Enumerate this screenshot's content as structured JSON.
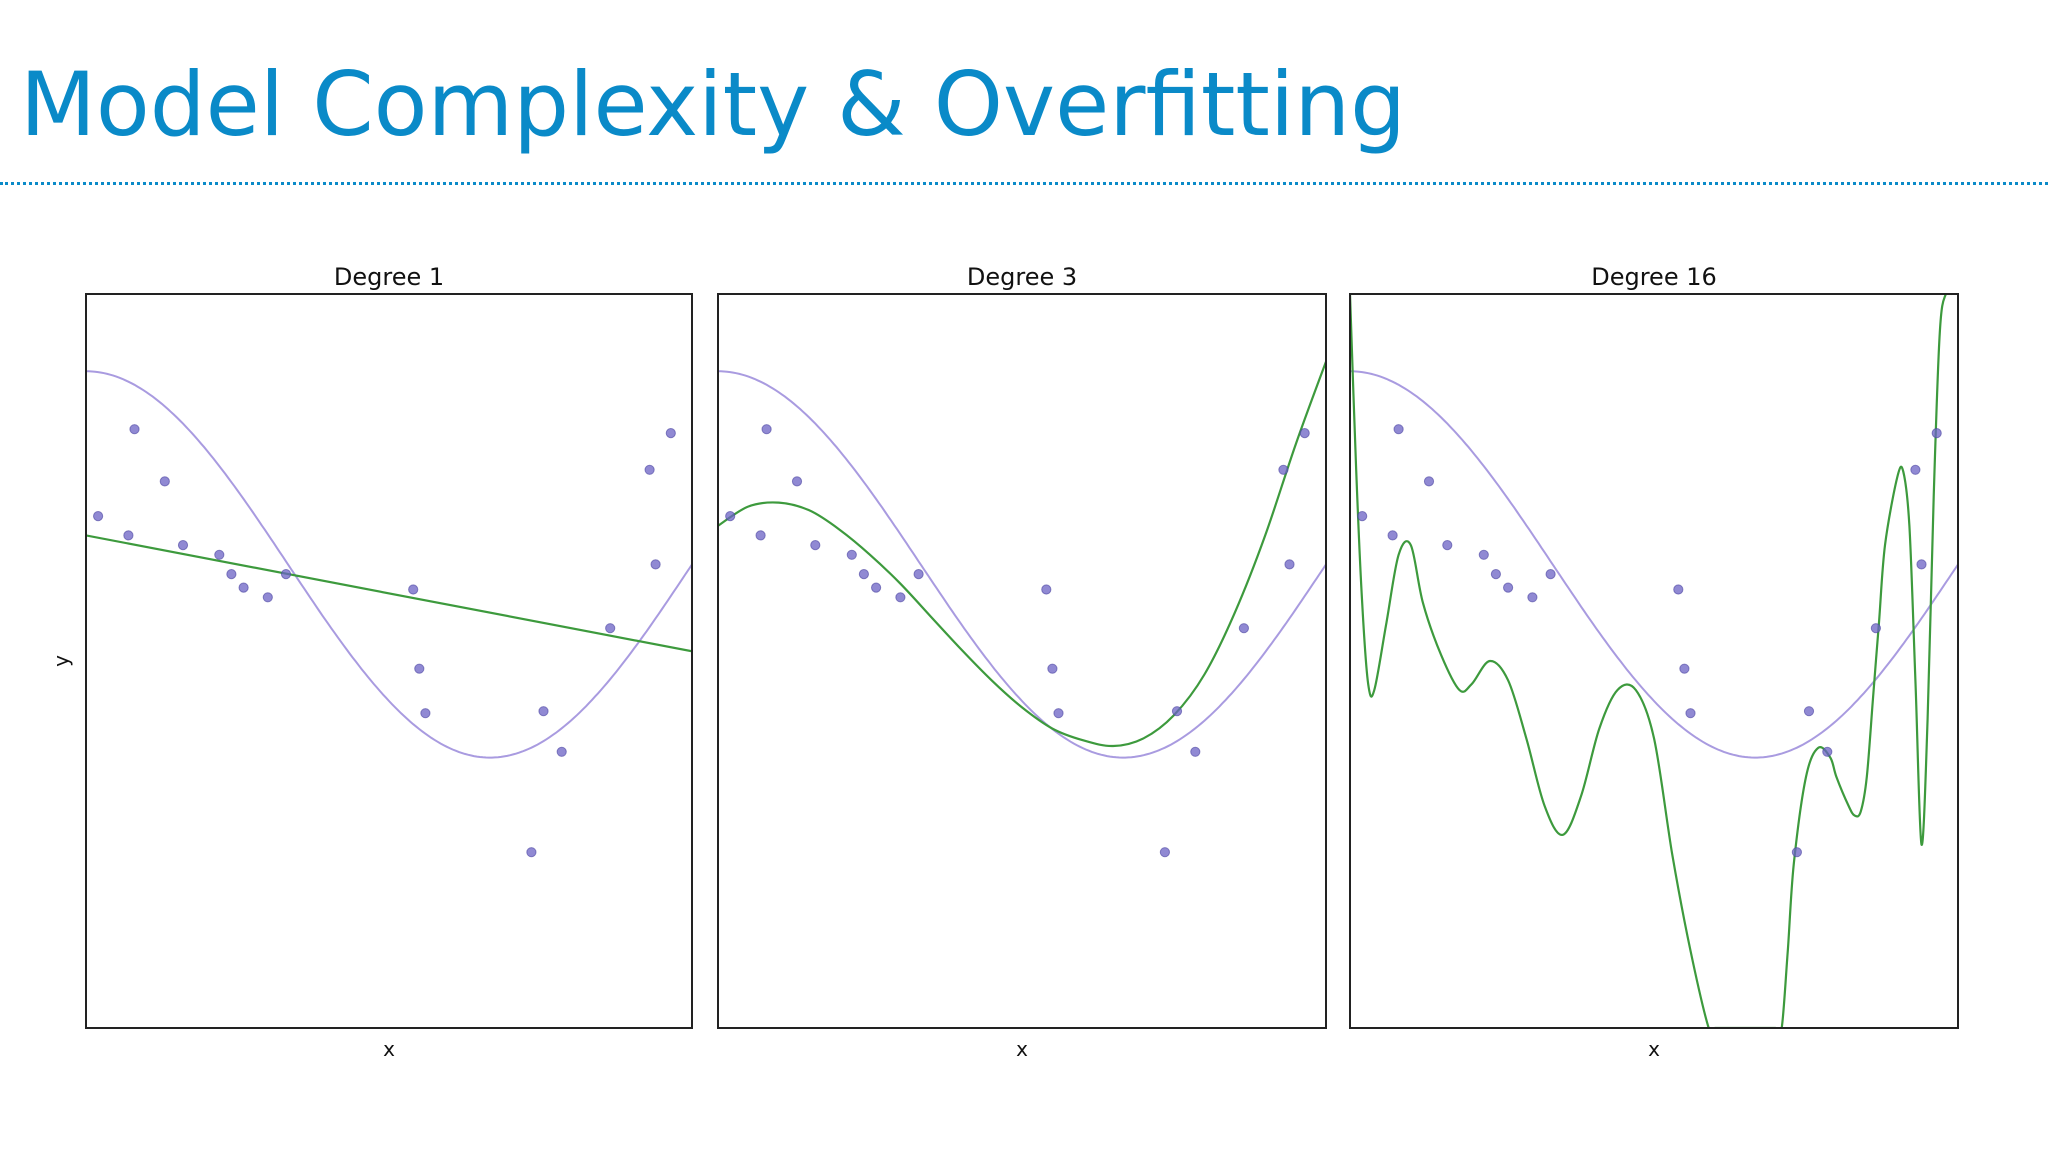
{
  "slide": {
    "title": "Model Complexity & Overfitting"
  },
  "colors": {
    "title": "#0a8ac8",
    "rule": "#0a8ac8",
    "true_curve": "#a99be0",
    "fit_curve": "#3d9a3d",
    "points": "#6b62c4"
  },
  "chart_data": [
    {
      "type": "scatter",
      "title": "Degree 1",
      "xlabel": "x",
      "ylabel": "y",
      "xlim": [
        0,
        1
      ],
      "ylim": [
        -2.4,
        1.4
      ],
      "grid": false,
      "ticks": false,
      "points": {
        "x": [
          0.02,
          0.07,
          0.08,
          0.13,
          0.16,
          0.22,
          0.24,
          0.26,
          0.3,
          0.33,
          0.54,
          0.55,
          0.56,
          0.735,
          0.755,
          0.785,
          0.865,
          0.93,
          0.94,
          0.965
        ],
        "y": [
          0.25,
          0.15,
          0.7,
          0.43,
          0.1,
          0.05,
          -0.05,
          -0.12,
          -0.17,
          -0.05,
          -0.13,
          -0.54,
          -0.77,
          -1.49,
          -0.76,
          -0.97,
          -0.33,
          0.49,
          0.0,
          0.68
        ]
      },
      "true_function": "cos(1.5*pi*x)",
      "fit": {
        "degree": 1,
        "x": [
          0.0,
          1.0
        ],
        "y": [
          0.15,
          -0.45
        ]
      }
    },
    {
      "type": "scatter",
      "title": "Degree 3",
      "xlabel": "x",
      "ylabel": "",
      "xlim": [
        0,
        1
      ],
      "ylim": [
        -2.4,
        1.4
      ],
      "grid": false,
      "ticks": false,
      "points": {
        "x": [
          0.02,
          0.07,
          0.08,
          0.13,
          0.16,
          0.22,
          0.24,
          0.26,
          0.3,
          0.33,
          0.54,
          0.55,
          0.56,
          0.735,
          0.755,
          0.785,
          0.865,
          0.93,
          0.94,
          0.965
        ],
        "y": [
          0.25,
          0.15,
          0.7,
          0.43,
          0.1,
          0.05,
          -0.05,
          -0.12,
          -0.17,
          -0.05,
          -0.13,
          -0.54,
          -0.77,
          -1.49,
          -0.76,
          -0.97,
          -0.33,
          0.49,
          0.0,
          0.68
        ]
      },
      "true_function": "cos(1.5*pi*x)",
      "fit": {
        "degree": 3,
        "x": [
          0.0,
          0.05,
          0.1,
          0.15,
          0.2,
          0.25,
          0.3,
          0.35,
          0.4,
          0.45,
          0.5,
          0.55,
          0.6,
          0.65,
          0.7,
          0.75,
          0.8,
          0.85,
          0.9,
          0.95,
          1.0
        ],
        "y": [
          0.2,
          0.3,
          0.32,
          0.28,
          0.18,
          0.05,
          -0.1,
          -0.27,
          -0.44,
          -0.6,
          -0.74,
          -0.85,
          -0.91,
          -0.94,
          -0.9,
          -0.78,
          -0.57,
          -0.25,
          0.15,
          0.62,
          1.05
        ]
      }
    },
    {
      "type": "scatter",
      "title": "Degree 16",
      "xlabel": "x",
      "ylabel": "",
      "xlim": [
        0,
        1
      ],
      "ylim": [
        -2.4,
        1.4
      ],
      "grid": false,
      "ticks": false,
      "points": {
        "x": [
          0.02,
          0.07,
          0.08,
          0.13,
          0.16,
          0.22,
          0.24,
          0.26,
          0.3,
          0.33,
          0.54,
          0.55,
          0.56,
          0.735,
          0.755,
          0.785,
          0.865,
          0.93,
          0.94,
          0.965
        ],
        "y": [
          0.25,
          0.15,
          0.7,
          0.43,
          0.1,
          0.05,
          -0.05,
          -0.12,
          -0.17,
          -0.05,
          -0.13,
          -0.54,
          -0.77,
          -1.49,
          -0.76,
          -0.97,
          -0.33,
          0.49,
          0.0,
          0.68
        ]
      },
      "true_function": "cos(1.5*pi*x)",
      "fit": {
        "degree": 16,
        "x": [
          0.0,
          0.01,
          0.02,
          0.03,
          0.04,
          0.06,
          0.08,
          0.1,
          0.12,
          0.15,
          0.18,
          0.2,
          0.23,
          0.26,
          0.29,
          0.32,
          0.35,
          0.38,
          0.41,
          0.44,
          0.47,
          0.5,
          0.53,
          0.56,
          0.59,
          0.6,
          0.61,
          0.62,
          0.65,
          0.68,
          0.7,
          0.71,
          0.72,
          0.73,
          0.75,
          0.77,
          0.79,
          0.8,
          0.82,
          0.83,
          0.84,
          0.85,
          0.86,
          0.87,
          0.88,
          0.9,
          0.91,
          0.92,
          0.93,
          0.94,
          0.95,
          0.96,
          0.97,
          0.98,
          0.99
        ],
        "y": [
          1.4,
          0.5,
          -0.2,
          -0.62,
          -0.65,
          -0.3,
          0.05,
          0.1,
          -0.2,
          -0.47,
          -0.65,
          -0.62,
          -0.5,
          -0.6,
          -0.9,
          -1.25,
          -1.4,
          -1.2,
          -0.85,
          -0.65,
          -0.65,
          -0.9,
          -1.5,
          -2.0,
          -2.4,
          -2.4,
          -2.4,
          -2.4,
          -2.4,
          -2.4,
          -2.4,
          -2.4,
          -2.0,
          -1.55,
          -1.1,
          -0.95,
          -1.0,
          -1.1,
          -1.25,
          -1.3,
          -1.28,
          -1.1,
          -0.7,
          -0.3,
          0.1,
          0.45,
          0.48,
          0.2,
          -0.6,
          -1.45,
          -0.8,
          0.35,
          1.2,
          1.4,
          1.4
        ]
      }
    }
  ]
}
